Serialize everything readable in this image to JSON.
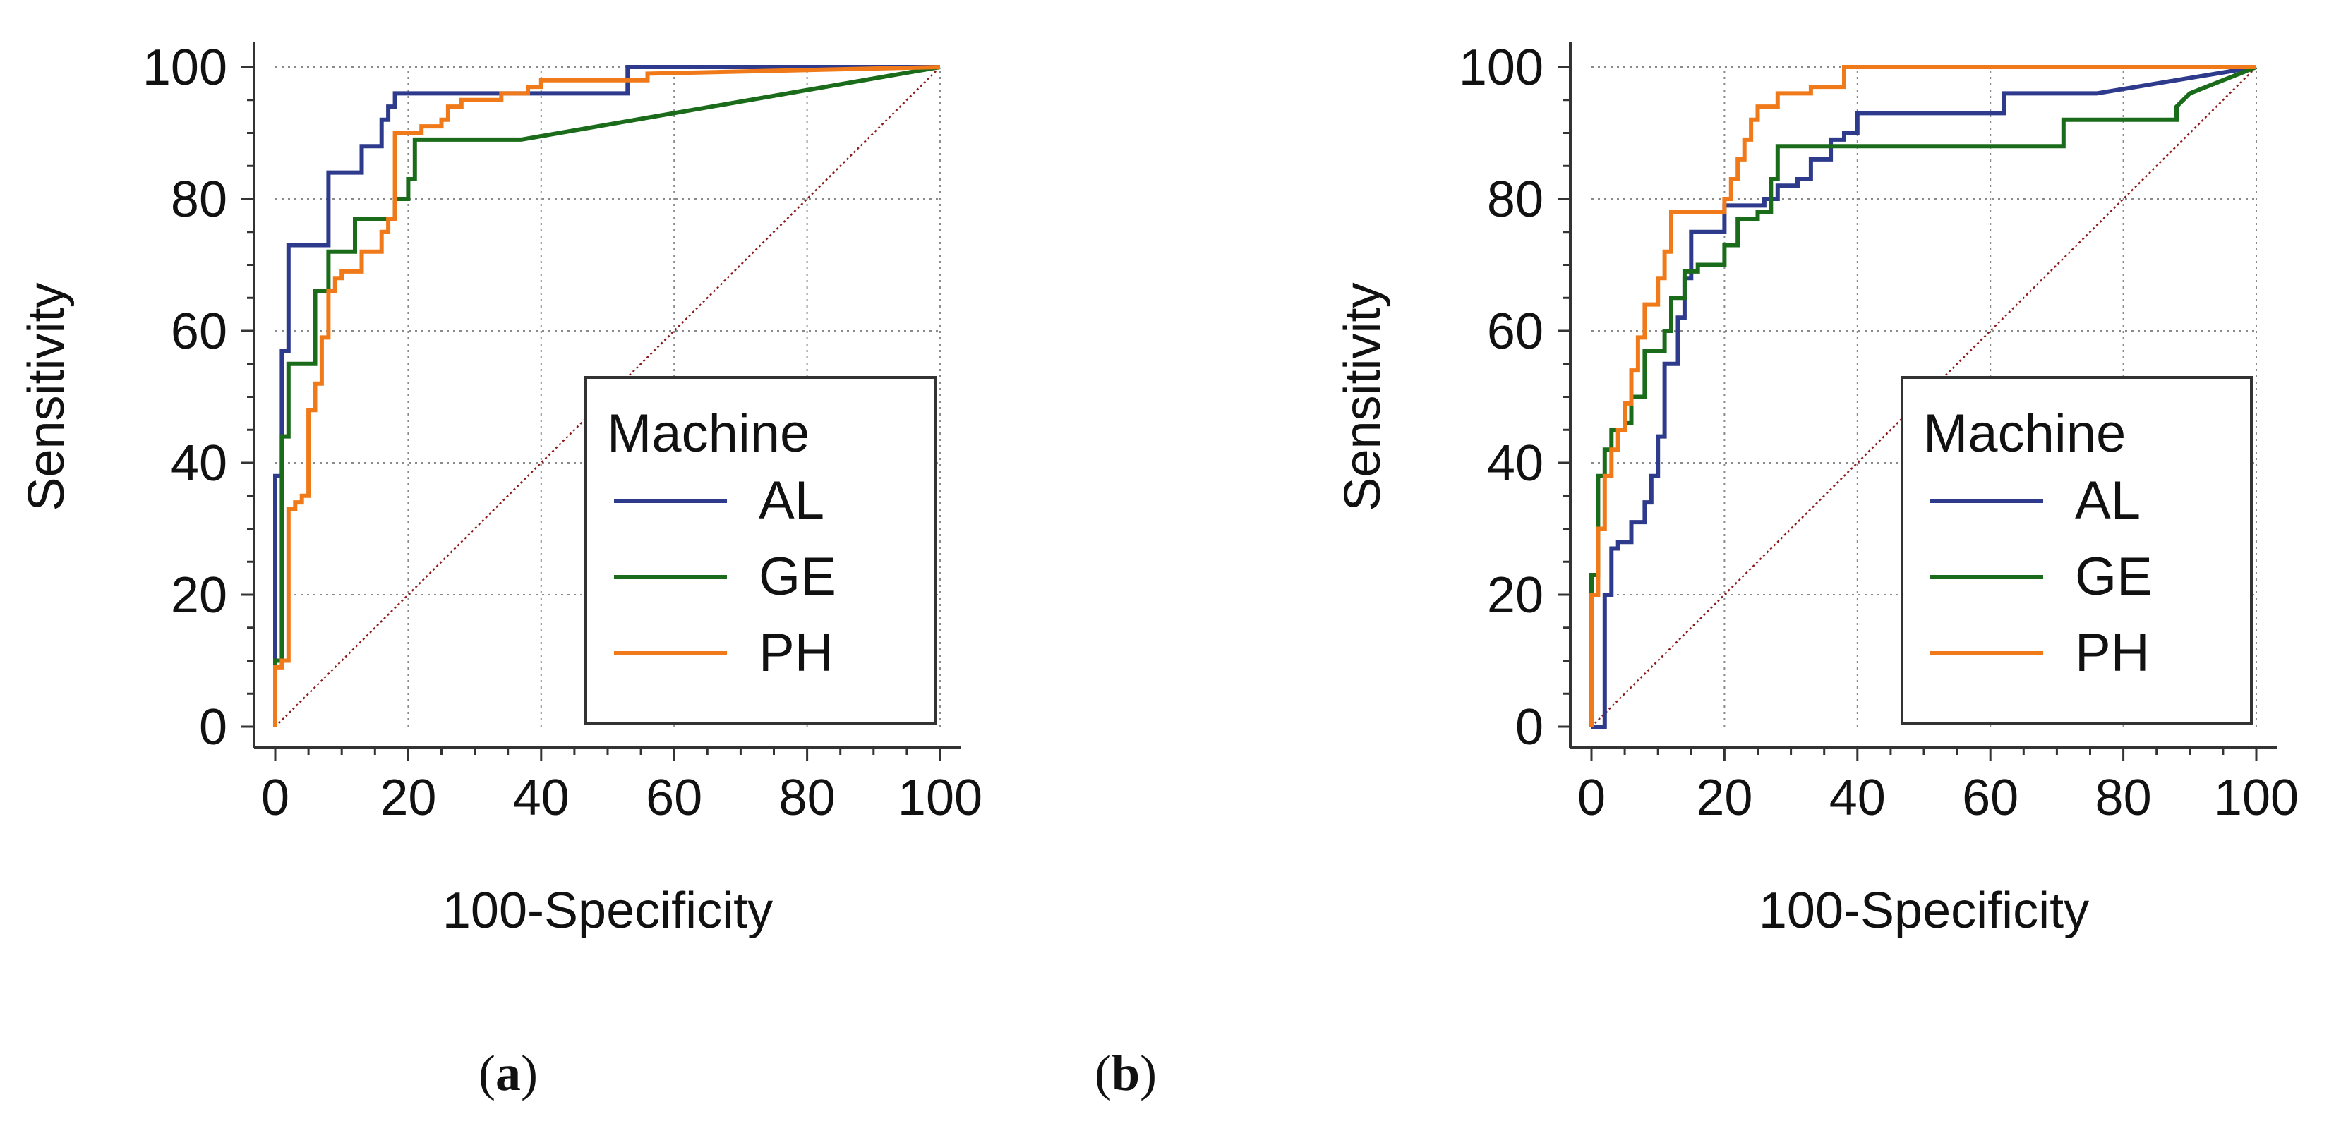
{
  "chart_data": [
    {
      "type": "line",
      "panel_label": "(a)",
      "panel_letter": "a",
      "xlabel": "100-Specificity",
      "ylabel": "Sensitivity",
      "xlim": [
        0,
        100
      ],
      "ylim": [
        0,
        100
      ],
      "xticks": [
        0,
        20,
        40,
        60,
        80,
        100
      ],
      "yticks": [
        0,
        20,
        40,
        60,
        80,
        100
      ],
      "grid": true,
      "reference_line": true,
      "legend": {
        "title": "Machine",
        "position": "bottom-right"
      },
      "series": [
        {
          "name": "AL",
          "color": "#2e3a8c",
          "x": [
            0,
            0,
            1,
            1,
            2,
            2,
            8,
            8,
            13,
            13,
            16,
            16,
            17,
            17,
            18,
            18,
            53,
            53,
            100
          ],
          "y": [
            0,
            38,
            38,
            57,
            57,
            73,
            73,
            84,
            84,
            88,
            88,
            92,
            92,
            94,
            94,
            96,
            96,
            100,
            100
          ]
        },
        {
          "name": "GE",
          "color": "#1a6b1a",
          "x": [
            0,
            0,
            1,
            1,
            2,
            2,
            6,
            6,
            8,
            8,
            12,
            12,
            18,
            18,
            20,
            20,
            21,
            21,
            37,
            100
          ],
          "y": [
            0,
            10,
            10,
            44,
            44,
            55,
            55,
            66,
            66,
            72,
            72,
            77,
            77,
            80,
            80,
            83,
            83,
            89,
            89,
            100
          ]
        },
        {
          "name": "PH",
          "color": "#f07a1a",
          "x": [
            0,
            0,
            1,
            1,
            2,
            2,
            3,
            3,
            4,
            4,
            5,
            5,
            6,
            6,
            7,
            7,
            8,
            8,
            9,
            9,
            10,
            10,
            13,
            13,
            16,
            16,
            17,
            17,
            18,
            18,
            22,
            22,
            25,
            25,
            26,
            26,
            28,
            28,
            34,
            34,
            38,
            38,
            40,
            40,
            56,
            56,
            100
          ],
          "y": [
            0,
            9,
            9,
            10,
            10,
            33,
            33,
            34,
            34,
            35,
            35,
            48,
            48,
            52,
            52,
            59,
            59,
            66,
            66,
            68,
            68,
            69,
            69,
            72,
            72,
            75,
            75,
            77,
            77,
            90,
            90,
            91,
            91,
            92,
            92,
            94,
            94,
            95,
            95,
            96,
            96,
            97,
            97,
            98,
            98,
            99,
            100
          ]
        }
      ]
    },
    {
      "type": "line",
      "panel_label": "(b)",
      "panel_letter": "b",
      "xlabel": "100-Specificity",
      "ylabel": "Sensitivity",
      "xlim": [
        0,
        100
      ],
      "ylim": [
        0,
        100
      ],
      "xticks": [
        0,
        20,
        40,
        60,
        80,
        100
      ],
      "yticks": [
        0,
        20,
        40,
        60,
        80,
        100
      ],
      "grid": true,
      "reference_line": true,
      "legend": {
        "title": "Machine",
        "position": "bottom-right"
      },
      "series": [
        {
          "name": "AL",
          "color": "#2e3a8c",
          "x": [
            0,
            2,
            2,
            3,
            3,
            4,
            4,
            6,
            6,
            8,
            8,
            9,
            9,
            10,
            10,
            11,
            11,
            13,
            13,
            14,
            14,
            15,
            15,
            20,
            20,
            26,
            26,
            28,
            28,
            31,
            31,
            33,
            33,
            36,
            36,
            38,
            38,
            40,
            40,
            62,
            62,
            76,
            100
          ],
          "y": [
            0,
            0,
            20,
            20,
            27,
            27,
            28,
            28,
            31,
            31,
            34,
            34,
            38,
            38,
            44,
            44,
            55,
            55,
            62,
            62,
            68,
            68,
            75,
            75,
            79,
            79,
            80,
            80,
            82,
            82,
            83,
            83,
            86,
            86,
            89,
            89,
            90,
            90,
            93,
            93,
            96,
            96,
            100
          ]
        },
        {
          "name": "GE",
          "color": "#1a6b1a",
          "x": [
            0,
            0,
            1,
            1,
            2,
            2,
            3,
            3,
            5,
            5,
            6,
            6,
            8,
            8,
            11,
            11,
            12,
            12,
            14,
            14,
            16,
            16,
            20,
            20,
            22,
            22,
            25,
            25,
            27,
            27,
            28,
            28,
            71,
            71,
            88,
            88,
            90,
            100
          ],
          "y": [
            0,
            23,
            23,
            38,
            38,
            42,
            42,
            45,
            45,
            46,
            46,
            50,
            50,
            57,
            57,
            60,
            60,
            65,
            65,
            69,
            69,
            70,
            70,
            73,
            73,
            77,
            77,
            78,
            78,
            83,
            83,
            88,
            88,
            92,
            92,
            94,
            96,
            100
          ]
        },
        {
          "name": "PH",
          "color": "#f07a1a",
          "x": [
            0,
            0,
            1,
            1,
            2,
            2,
            3,
            3,
            4,
            4,
            5,
            5,
            6,
            6,
            7,
            7,
            8,
            8,
            10,
            10,
            11,
            11,
            12,
            12,
            20,
            20,
            21,
            21,
            22,
            22,
            23,
            23,
            24,
            24,
            25,
            25,
            28,
            28,
            33,
            33,
            38,
            38,
            100
          ],
          "y": [
            0,
            20,
            20,
            30,
            30,
            38,
            38,
            42,
            42,
            45,
            45,
            49,
            49,
            54,
            54,
            59,
            59,
            64,
            64,
            68,
            68,
            72,
            72,
            78,
            78,
            80,
            80,
            83,
            83,
            86,
            86,
            89,
            89,
            92,
            92,
            94,
            94,
            96,
            96,
            97,
            97,
            100,
            100
          ]
        }
      ]
    }
  ]
}
